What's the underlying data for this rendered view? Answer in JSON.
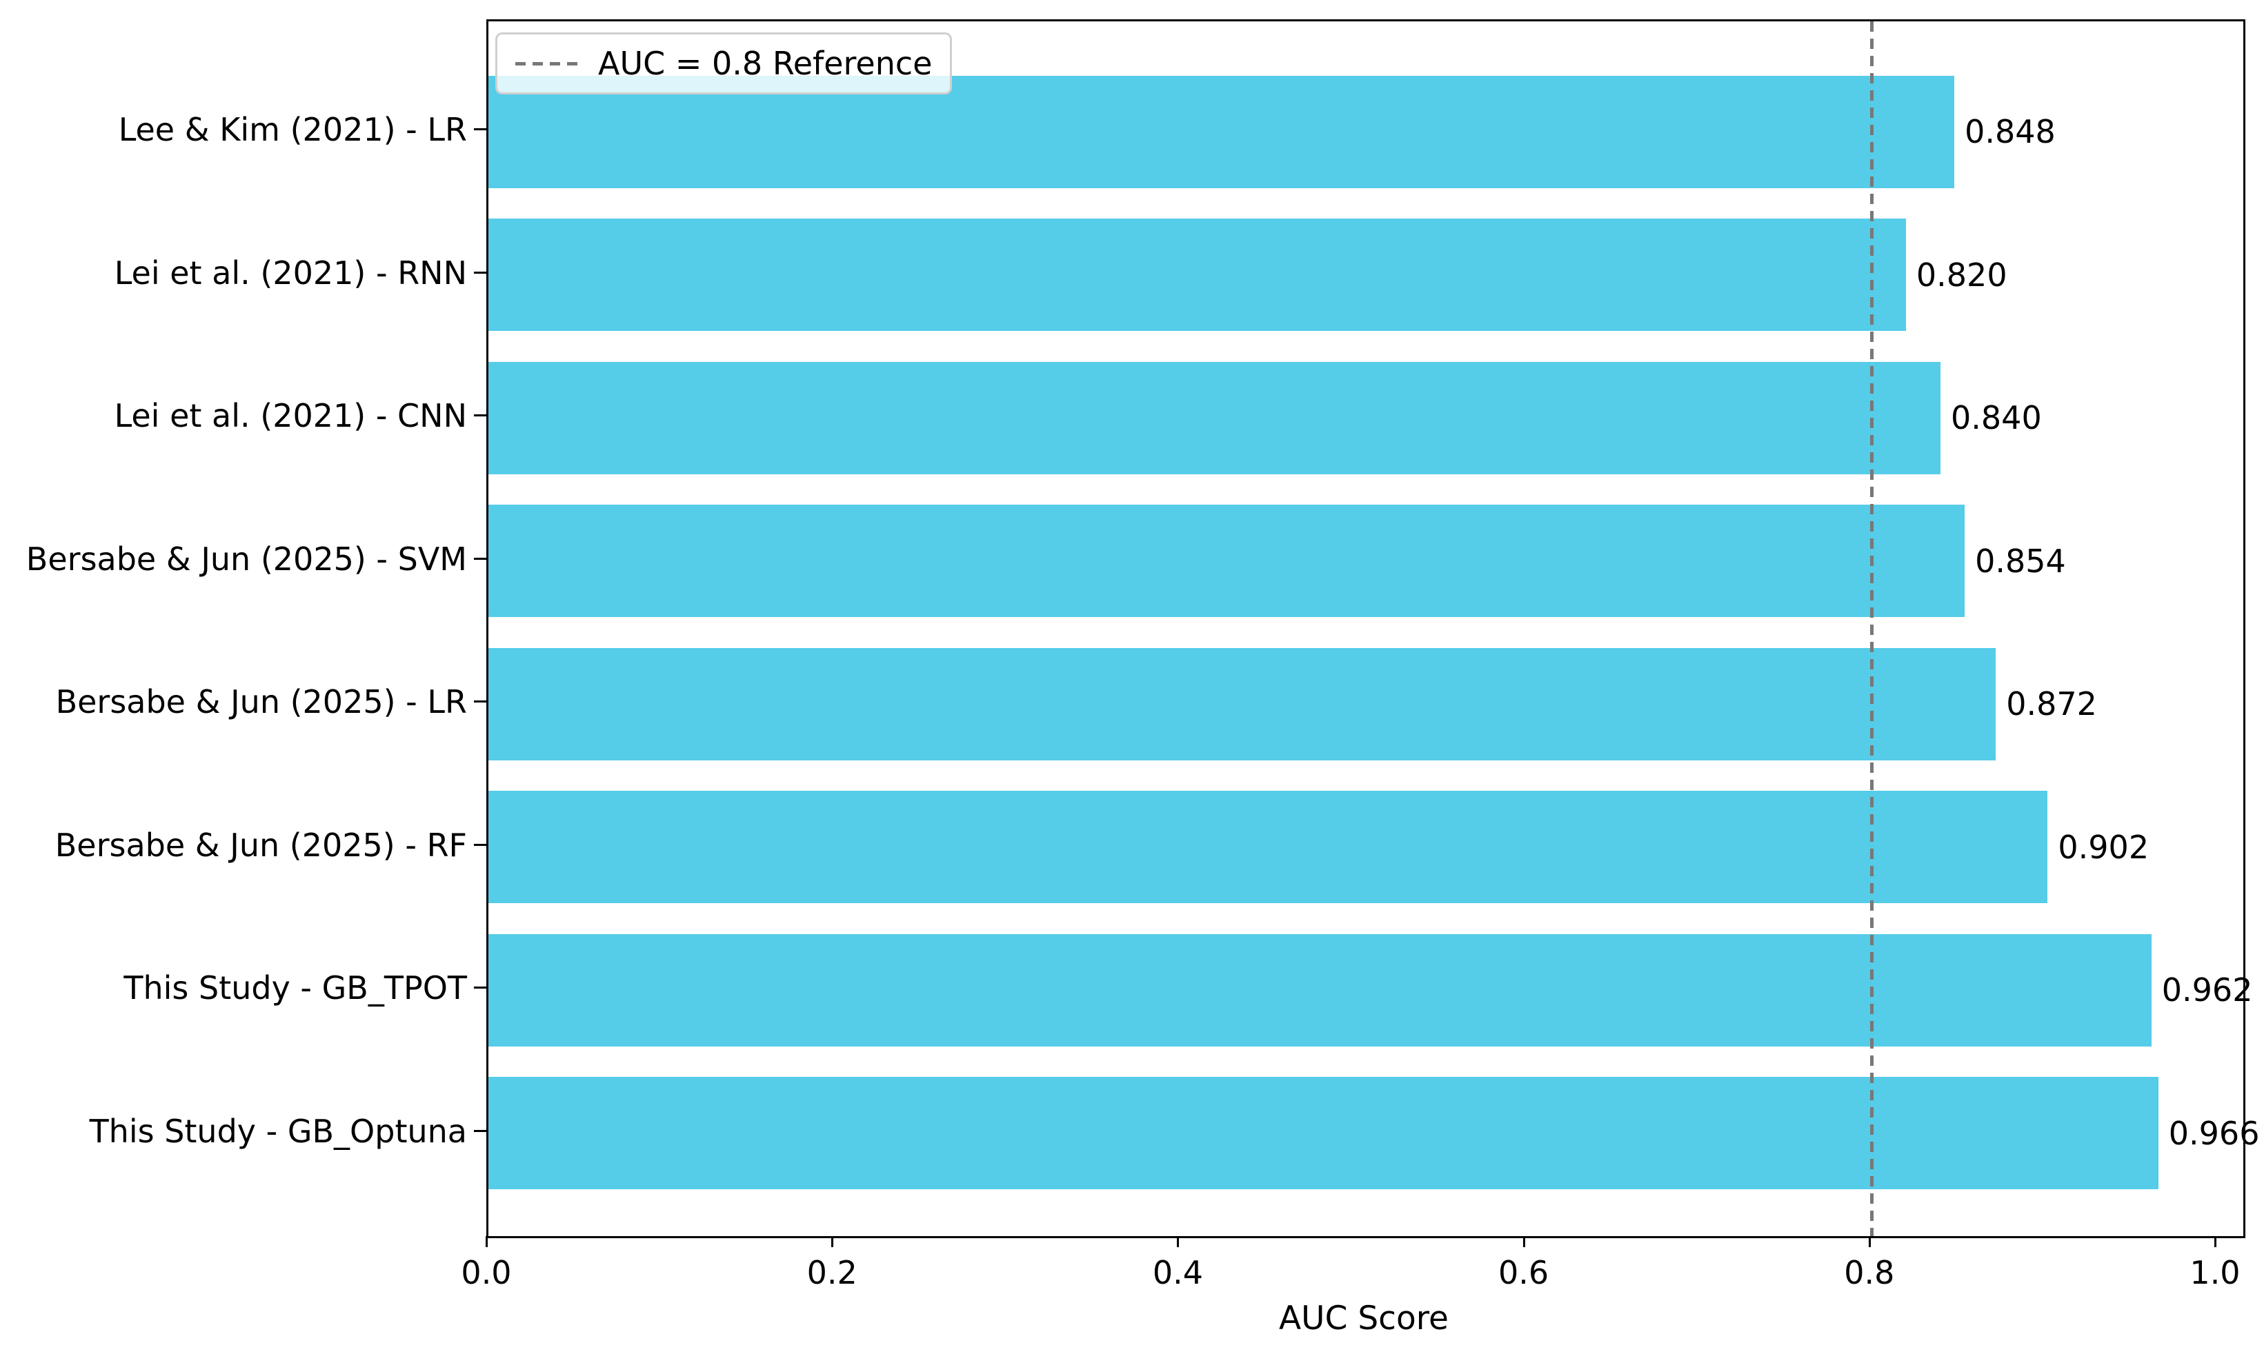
{
  "chart_data": {
    "type": "bar",
    "orientation": "horizontal",
    "categories": [
      "Lee & Kim (2021) - LR",
      "Lei et al. (2021) - RNN",
      "Lei et al. (2021) - CNN",
      "Bersabe & Jun (2025) - SVM",
      "Bersabe & Jun (2025) - LR",
      "Bersabe & Jun (2025) - RF",
      "This Study - GB_TPOT",
      "This Study - GB_Optuna"
    ],
    "values": [
      0.848,
      0.82,
      0.84,
      0.854,
      0.872,
      0.902,
      0.962,
      0.966
    ],
    "value_labels": [
      "0.848",
      "0.820",
      "0.840",
      "0.854",
      "0.872",
      "0.902",
      "0.962",
      "0.966"
    ],
    "xlabel": "AUC Score",
    "x_ticks": [
      "0.0",
      "0.2",
      "0.4",
      "0.6",
      "0.8",
      "1.0"
    ],
    "x_tick_values": [
      0,
      0.2,
      0.4,
      0.6,
      0.8,
      1.0
    ],
    "xlim": [
      0.0,
      1.0
    ],
    "grid": false,
    "legend_position": "upper left",
    "bar_color": "#55CCE8",
    "reference_line": {
      "value": 0.8,
      "label": "AUC = 0.8 Reference",
      "style": "dashed",
      "color": "#787878"
    }
  }
}
